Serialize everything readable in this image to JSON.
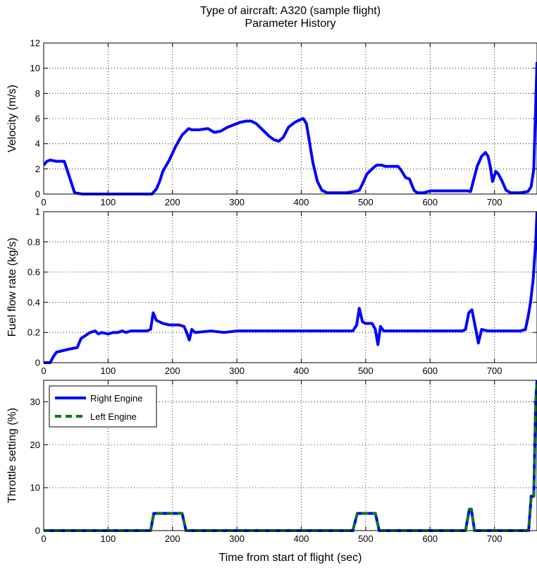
{
  "figure": {
    "title_line1": "Type of aircraft: A320 (sample flight)",
    "title_line2": "Parameter History",
    "xlabel": "Time from start of flight (sec)"
  },
  "colors": {
    "right_engine": "#0000ff",
    "left_engine": "#008000",
    "grid": "#000000",
    "axes": "#000000"
  },
  "chart_data": [
    {
      "type": "line",
      "ylabel": "Velocity (m/s)",
      "xlim": [
        0,
        766
      ],
      "ylim": [
        0,
        12
      ],
      "xticks": [
        0,
        100,
        200,
        300,
        400,
        500,
        600,
        700
      ],
      "yticks": [
        0,
        2,
        4,
        6,
        8,
        10,
        12
      ],
      "grid": true,
      "series": [
        {
          "color": "#0000ff",
          "style": "solid",
          "points": [
            [
              0,
              2.3
            ],
            [
              5,
              2.6
            ],
            [
              10,
              2.7
            ],
            [
              20,
              2.6
            ],
            [
              32,
              2.6
            ],
            [
              48,
              0.1
            ],
            [
              60,
              0
            ],
            [
              100,
              0
            ],
            [
              150,
              0
            ],
            [
              168,
              0
            ],
            [
              175,
              0.4
            ],
            [
              180,
              1.0
            ],
            [
              185,
              1.8
            ],
            [
              195,
              2.7
            ],
            [
              205,
              3.8
            ],
            [
              215,
              4.7
            ],
            [
              225,
              5.2
            ],
            [
              230,
              5.1
            ],
            [
              240,
              5.1
            ],
            [
              255,
              5.2
            ],
            [
              265,
              4.9
            ],
            [
              275,
              5.0
            ],
            [
              285,
              5.3
            ],
            [
              295,
              5.5
            ],
            [
              305,
              5.7
            ],
            [
              315,
              5.8
            ],
            [
              322,
              5.8
            ],
            [
              330,
              5.6
            ],
            [
              340,
              5.1
            ],
            [
              350,
              4.6
            ],
            [
              358,
              4.3
            ],
            [
              365,
              4.2
            ],
            [
              372,
              4.5
            ],
            [
              380,
              5.3
            ],
            [
              390,
              5.7
            ],
            [
              398,
              5.9
            ],
            [
              403,
              6.0
            ],
            [
              408,
              5.6
            ],
            [
              418,
              2.5
            ],
            [
              425,
              1.0
            ],
            [
              432,
              0.3
            ],
            [
              440,
              0.1
            ],
            [
              470,
              0.1
            ],
            [
              482,
              0.2
            ],
            [
              490,
              0.3
            ],
            [
              495,
              0.8
            ],
            [
              502,
              1.6
            ],
            [
              510,
              2.0
            ],
            [
              517,
              2.3
            ],
            [
              525,
              2.3
            ],
            [
              530,
              2.2
            ],
            [
              550,
              2.2
            ],
            [
              555,
              1.9
            ],
            [
              562,
              1.3
            ],
            [
              568,
              1.2
            ],
            [
              575,
              0.3
            ],
            [
              580,
              0.1
            ],
            [
              590,
              0.1
            ],
            [
              600,
              0.25
            ],
            [
              640,
              0.25
            ],
            [
              658,
              0.25
            ],
            [
              663,
              0.2
            ],
            [
              668,
              1.2
            ],
            [
              673,
              2.2
            ],
            [
              680,
              3.0
            ],
            [
              686,
              3.3
            ],
            [
              690,
              3.0
            ],
            [
              693,
              2.3
            ],
            [
              697,
              1.0
            ],
            [
              702,
              1.8
            ],
            [
              706,
              1.6
            ],
            [
              712,
              1.0
            ],
            [
              718,
              0.3
            ],
            [
              725,
              0.1
            ],
            [
              740,
              0.1
            ],
            [
              752,
              0.2
            ],
            [
              757,
              0.6
            ],
            [
              761,
              2.0
            ],
            [
              764,
              7.0
            ],
            [
              766,
              10.5
            ]
          ]
        }
      ]
    },
    {
      "type": "line",
      "ylabel": "Fuel flow rate (kg/s)",
      "xlim": [
        0,
        766
      ],
      "ylim": [
        0,
        1
      ],
      "xticks": [
        0,
        100,
        200,
        300,
        400,
        500,
        600,
        700
      ],
      "yticks": [
        0,
        0.2,
        0.4,
        0.6,
        0.8,
        1
      ],
      "grid": true,
      "series": [
        {
          "color": "#0000ff",
          "style": "solid",
          "points": [
            [
              0,
              0
            ],
            [
              10,
              0
            ],
            [
              15,
              0.04
            ],
            [
              20,
              0.07
            ],
            [
              30,
              0.08
            ],
            [
              40,
              0.09
            ],
            [
              52,
              0.1
            ],
            [
              58,
              0.16
            ],
            [
              65,
              0.18
            ],
            [
              72,
              0.2
            ],
            [
              80,
              0.21
            ],
            [
              85,
              0.19
            ],
            [
              90,
              0.2
            ],
            [
              100,
              0.19
            ],
            [
              108,
              0.2
            ],
            [
              115,
              0.2
            ],
            [
              122,
              0.21
            ],
            [
              128,
              0.2
            ],
            [
              135,
              0.21
            ],
            [
              160,
              0.21
            ],
            [
              166,
              0.22
            ],
            [
              170,
              0.33
            ],
            [
              175,
              0.28
            ],
            [
              180,
              0.27
            ],
            [
              185,
              0.26
            ],
            [
              195,
              0.25
            ],
            [
              210,
              0.25
            ],
            [
              218,
              0.24
            ],
            [
              222,
              0.2
            ],
            [
              226,
              0.15
            ],
            [
              230,
              0.22
            ],
            [
              235,
              0.2
            ],
            [
              260,
              0.21
            ],
            [
              280,
              0.2
            ],
            [
              300,
              0.21
            ],
            [
              400,
              0.21
            ],
            [
              420,
              0.21
            ],
            [
              480,
              0.21
            ],
            [
              486,
              0.25
            ],
            [
              490,
              0.36
            ],
            [
              495,
              0.27
            ],
            [
              500,
              0.26
            ],
            [
              510,
              0.26
            ],
            [
              515,
              0.22
            ],
            [
              519,
              0.12
            ],
            [
              523,
              0.24
            ],
            [
              528,
              0.21
            ],
            [
              560,
              0.21
            ],
            [
              600,
              0.21
            ],
            [
              650,
              0.21
            ],
            [
              655,
              0.22
            ],
            [
              660,
              0.33
            ],
            [
              665,
              0.35
            ],
            [
              670,
              0.24
            ],
            [
              675,
              0.13
            ],
            [
              680,
              0.22
            ],
            [
              690,
              0.21
            ],
            [
              740,
              0.21
            ],
            [
              748,
              0.22
            ],
            [
              752,
              0.3
            ],
            [
              756,
              0.4
            ],
            [
              760,
              0.55
            ],
            [
              764,
              0.8
            ],
            [
              766,
              1.0
            ]
          ]
        }
      ]
    },
    {
      "type": "line",
      "ylabel": "Throttle setting (%)",
      "xlim": [
        0,
        766
      ],
      "ylim": [
        0,
        35
      ],
      "xticks": [
        0,
        100,
        200,
        300,
        400,
        500,
        600,
        700
      ],
      "yticks": [
        0,
        10,
        20,
        30
      ],
      "grid": true,
      "legend": "top-left",
      "series": [
        {
          "name": "Right Engine",
          "color": "#0000ff",
          "style": "solid",
          "points": [
            [
              0,
              0
            ],
            [
              160,
              0
            ],
            [
              166,
              0
            ],
            [
              171,
              4
            ],
            [
              215,
              4
            ],
            [
              221,
              0
            ],
            [
              480,
              0
            ],
            [
              487,
              4
            ],
            [
              515,
              4
            ],
            [
              521,
              0
            ],
            [
              655,
              0
            ],
            [
              661,
              5
            ],
            [
              664,
              5
            ],
            [
              669,
              0
            ],
            [
              753,
              0
            ],
            [
              757,
              8
            ],
            [
              761,
              8
            ],
            [
              764,
              30
            ],
            [
              766,
              35
            ]
          ]
        },
        {
          "name": "Left Engine",
          "color": "#008000",
          "style": "dashed",
          "points": [
            [
              0,
              0
            ],
            [
              160,
              0
            ],
            [
              166,
              0
            ],
            [
              171,
              4
            ],
            [
              215,
              4
            ],
            [
              221,
              0
            ],
            [
              480,
              0
            ],
            [
              487,
              4
            ],
            [
              515,
              4
            ],
            [
              521,
              0
            ],
            [
              655,
              0
            ],
            [
              661,
              5
            ],
            [
              664,
              5
            ],
            [
              669,
              0
            ],
            [
              753,
              0
            ],
            [
              757,
              8
            ],
            [
              761,
              8
            ],
            [
              764,
              30
            ],
            [
              766,
              35
            ]
          ]
        }
      ]
    }
  ]
}
